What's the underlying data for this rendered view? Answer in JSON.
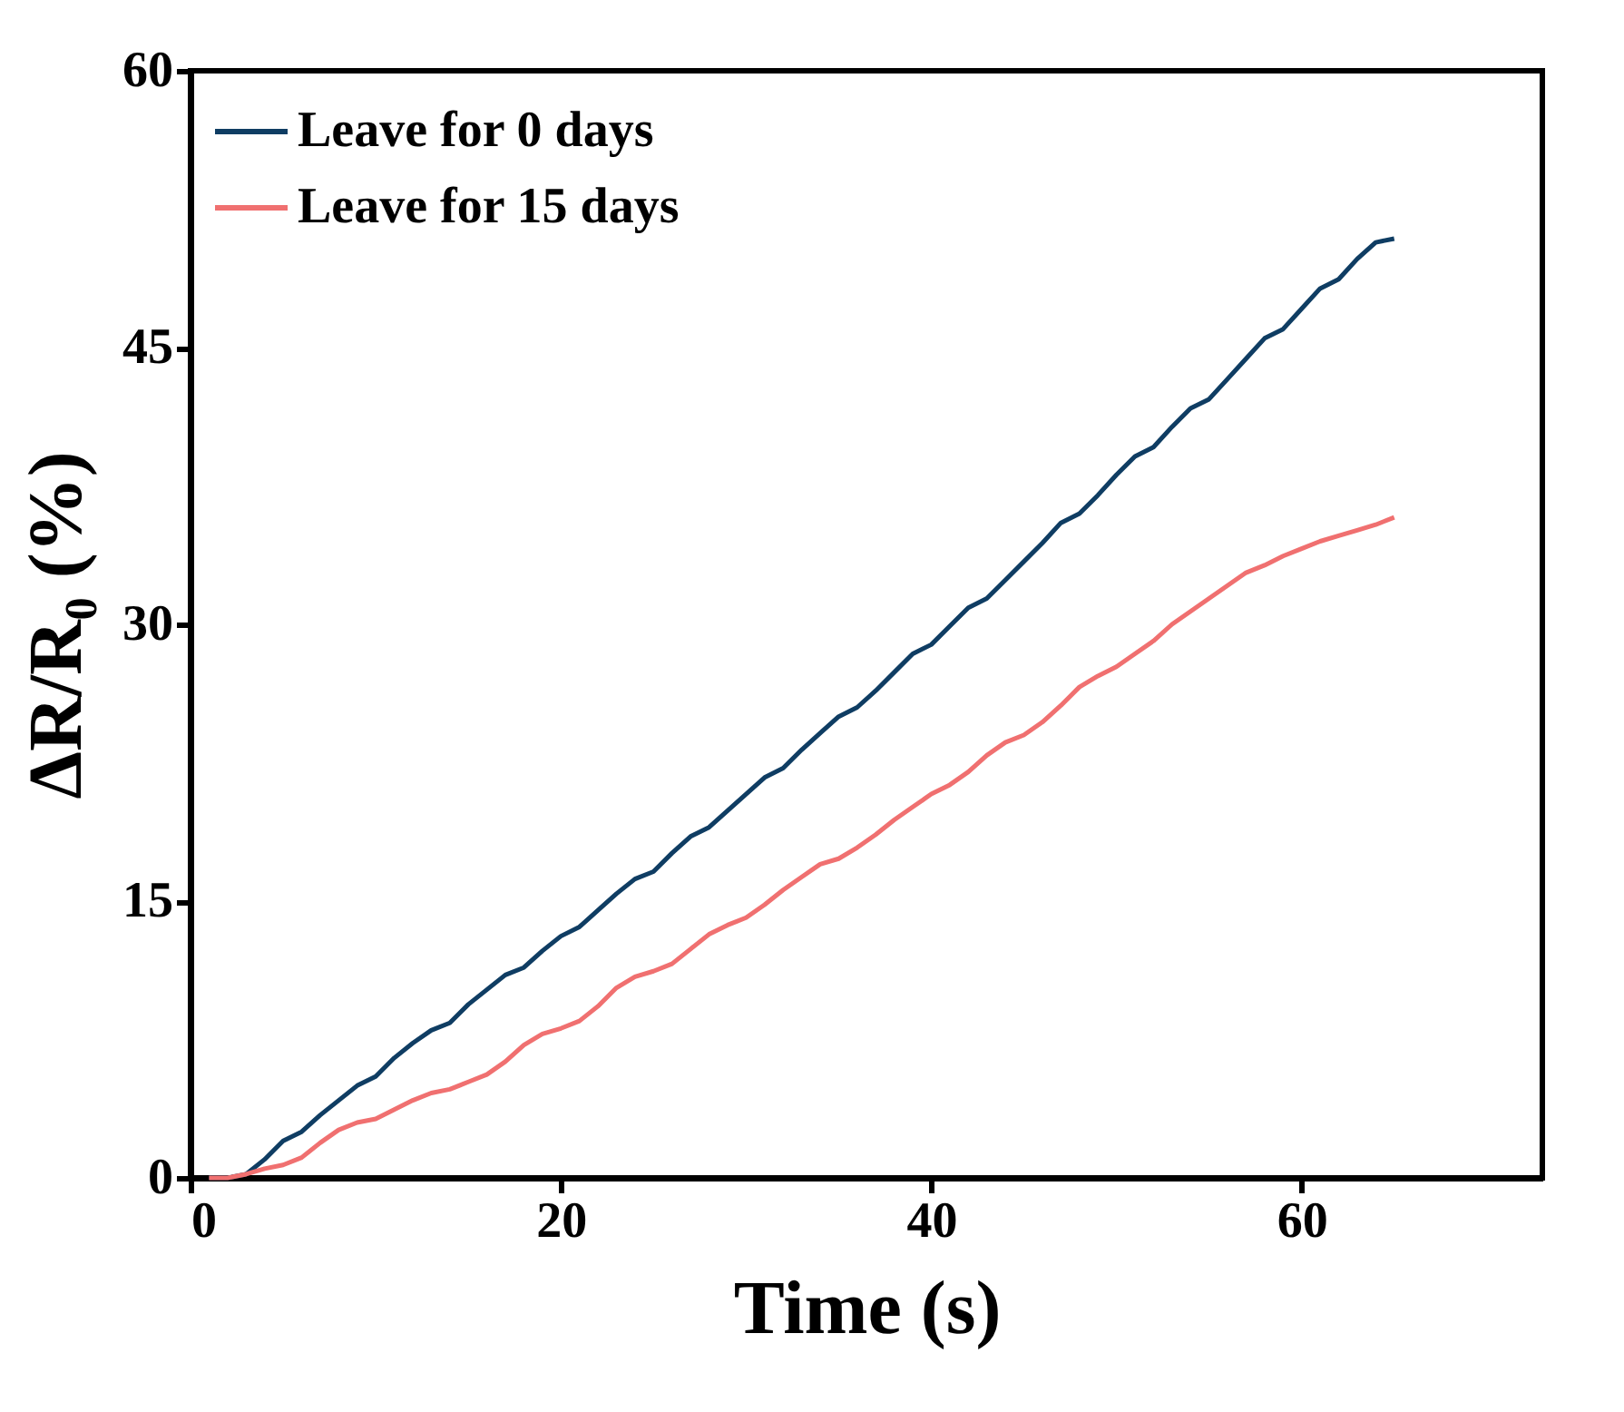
{
  "chart_data": {
    "type": "line",
    "xlabel": "Time (s)",
    "ylabel": "ΔR/R₀ (%)",
    "x": [
      1,
      2,
      3,
      4,
      5,
      6,
      7,
      8,
      9,
      10,
      11,
      12,
      13,
      14,
      15,
      16,
      17,
      18,
      19,
      20,
      21,
      22,
      23,
      24,
      25,
      26,
      27,
      28,
      29,
      30,
      31,
      32,
      33,
      34,
      35,
      36,
      37,
      38,
      39,
      40,
      41,
      42,
      43,
      44,
      45,
      46,
      47,
      48,
      49,
      50,
      51,
      52,
      53,
      54,
      55,
      56,
      57,
      58,
      59,
      60,
      61,
      62,
      63,
      64,
      65
    ],
    "series": [
      {
        "name": "Leave for 0  days",
        "color": "#0f3d63",
        "values": [
          0,
          0,
          0.2,
          1,
          2,
          2.5,
          3.4,
          4.2,
          5,
          5.5,
          6.5,
          7.3,
          8,
          8.4,
          9.4,
          10.2,
          11,
          11.4,
          12.3,
          13.1,
          13.6,
          14.5,
          15.4,
          16.2,
          16.6,
          17.6,
          18.5,
          19,
          19.9,
          20.8,
          21.7,
          22.2,
          23.2,
          24.1,
          25,
          25.5,
          26.4,
          27.4,
          28.4,
          28.9,
          29.9,
          30.9,
          31.4,
          32.4,
          33.4,
          34.4,
          35.5,
          36,
          37,
          38.1,
          39.1,
          39.6,
          40.7,
          41.7,
          42.2,
          43.3,
          44.4,
          45.5,
          46,
          47.1,
          48.2,
          48.7,
          49.8,
          50.7,
          50.9
        ]
      },
      {
        "name": "Leave for 15 days",
        "color": "#f07070",
        "values": [
          0,
          0,
          0.2,
          0.5,
          0.7,
          1.1,
          1.9,
          2.6,
          3,
          3.2,
          3.7,
          4.2,
          4.6,
          4.8,
          5.2,
          5.6,
          6.3,
          7.2,
          7.8,
          8.1,
          8.5,
          9.3,
          10.3,
          10.9,
          11.2,
          11.6,
          12.4,
          13.2,
          13.7,
          14.1,
          14.8,
          15.6,
          16.3,
          17,
          17.3,
          17.9,
          18.6,
          19.4,
          20.1,
          20.8,
          21.3,
          22,
          22.9,
          23.6,
          24,
          24.7,
          25.6,
          26.6,
          27.2,
          27.7,
          28.4,
          29.1,
          30,
          30.7,
          31.4,
          32.1,
          32.8,
          33.2,
          33.7,
          34.1,
          34.5,
          34.8,
          35.1,
          35.4,
          35.8
        ]
      }
    ],
    "xlim": [
      0,
      73
    ],
    "xticks": [
      0,
      20,
      40,
      60
    ],
    "ylim": [
      0,
      60
    ],
    "yticks": [
      0,
      15,
      30,
      45,
      60
    ],
    "grid": false,
    "legend": "top left",
    "marker": "none",
    "line_style": "solid"
  }
}
